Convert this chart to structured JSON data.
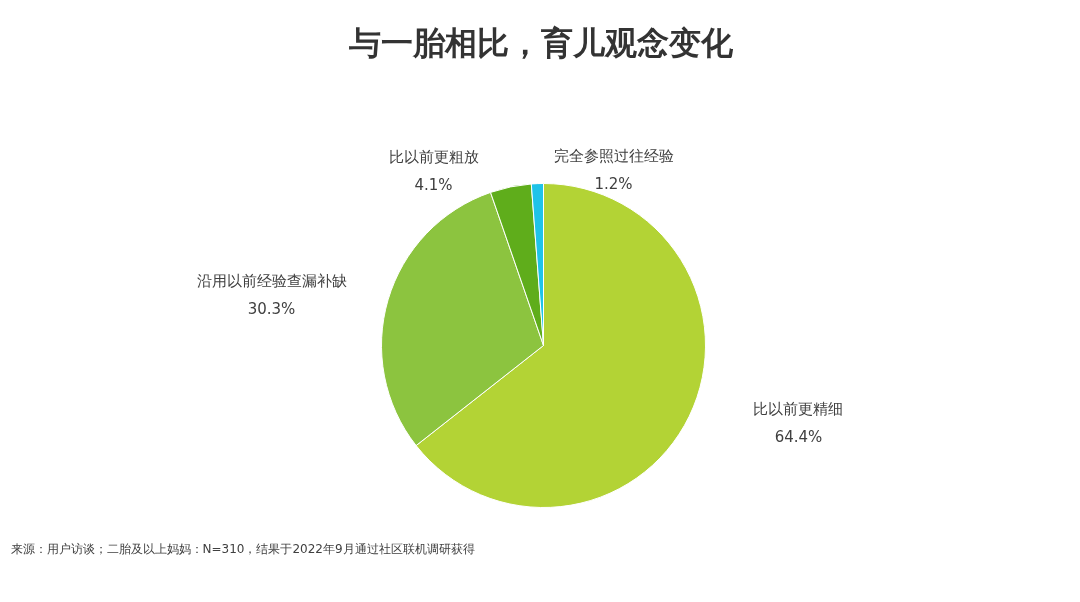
{
  "chart_data": {
    "type": "pie",
    "title": "与一胎相比，育儿观念变化",
    "categories": [
      "比以前更精细",
      "沿用以前经验查漏补缺",
      "比以前更粗放",
      "完全参照过往经验"
    ],
    "values": [
      64.4,
      30.3,
      4.1,
      1.2
    ],
    "value_labels": [
      "64.4%",
      "30.3%",
      "4.1%",
      "1.2%"
    ],
    "colors": [
      "#b3d335",
      "#8cc43f",
      "#5fad1b",
      "#1fc3e8"
    ],
    "legend": false,
    "annotations": [
      "来源：用户访谈；二胎及以上妈妈：N=310，结果于2022年9月通过社区联机调研获得"
    ]
  }
}
